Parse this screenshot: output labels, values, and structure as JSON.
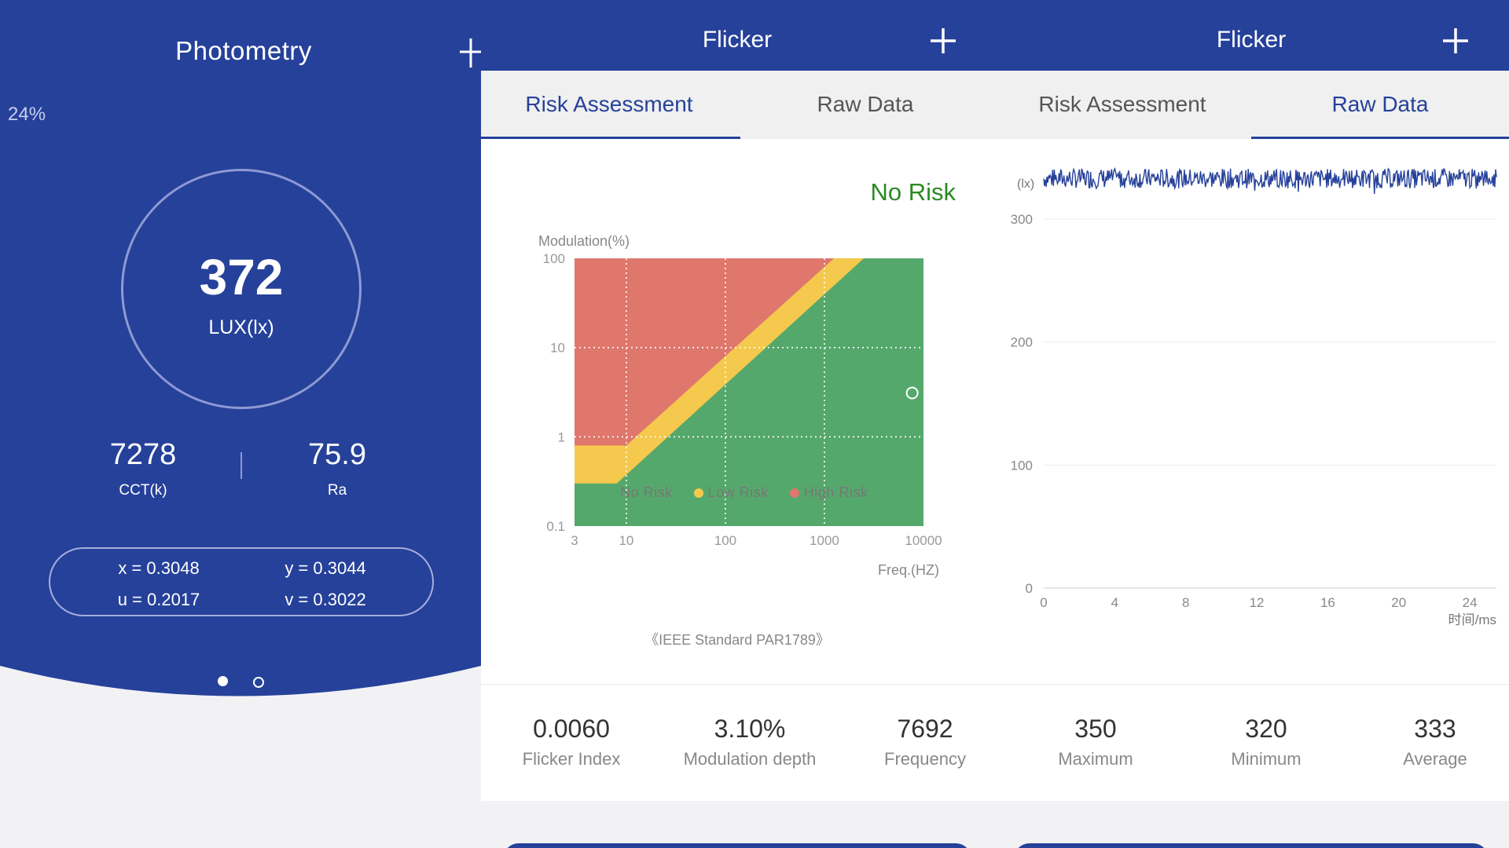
{
  "photometry": {
    "title": "Photometry",
    "battery": "24%",
    "lux_value": "372",
    "lux_unit": "LUX(lx)",
    "cct_value": "7278",
    "cct_label": "CCT(k)",
    "ra_value": "75.9",
    "ra_label": "Ra",
    "x": "x = 0.3048",
    "y": "y = 0.3044",
    "u": "u = 0.2017",
    "v": "v = 0.3022",
    "page_count": 2,
    "active_page": 1,
    "colors": {
      "primary": "#26419a",
      "ring": "#8e9ad3"
    }
  },
  "flicker_risk": {
    "title": "Flicker",
    "tabs": [
      {
        "label": "Risk Assessment"
      },
      {
        "label": "Raw Data"
      }
    ],
    "active_tab": 0,
    "risk_level": "No Risk",
    "legend": [
      {
        "label": "No Risk"
      },
      {
        "label": "Low Risk"
      },
      {
        "label": "High Risk"
      }
    ],
    "standard": "《IEEE Standard PAR1789》",
    "stats": [
      {
        "value": "0.0060",
        "label": "Flicker Index"
      },
      {
        "value": "3.10%",
        "label": "Modulation depth"
      },
      {
        "value": "7692",
        "label": "Frequency"
      }
    ]
  },
  "flicker_raw": {
    "title": "Flicker",
    "tabs": [
      {
        "label": "Risk Assessment"
      },
      {
        "label": "Raw Data"
      }
    ],
    "active_tab": 1,
    "stats": [
      {
        "value": "350",
        "label": "Maximum"
      },
      {
        "value": "320",
        "label": "Minimum"
      },
      {
        "value": "333",
        "label": "Average"
      }
    ]
  },
  "chart_data": [
    {
      "type": "area",
      "ylabel": "Modulation(%)",
      "xlabel": "Freq.(HZ)",
      "x_scale": "log",
      "y_scale": "log",
      "xlim": [
        3,
        10000
      ],
      "ylim": [
        0.1,
        100
      ],
      "x_ticks": [
        "3",
        "10",
        "100",
        "1000",
        "10000"
      ],
      "y_ticks": [
        "0.1",
        "1",
        "10",
        "100"
      ],
      "grid": true,
      "legend_position": "bottom",
      "regions": [
        {
          "name": "No Risk",
          "color": "#55a86b"
        },
        {
          "name": "Low Risk",
          "color": "#f5c94d"
        },
        {
          "name": "High Risk",
          "color": "#df776c"
        }
      ],
      "no_risk_boundary": {
        "x": [
          3,
          8,
          2500
        ],
        "y": [
          0.3,
          0.3,
          100
        ]
      },
      "low_risk_boundary": {
        "x": [
          3,
          10,
          1250
        ],
        "y": [
          0.8,
          0.8,
          100
        ]
      },
      "point": {
        "x": 7692,
        "y": 3.1
      }
    },
    {
      "type": "line",
      "ylabel": "(lx)",
      "xlabel": "时间/ms",
      "xlim": [
        0,
        25.5
      ],
      "ylim": [
        0,
        330
      ],
      "x_ticks": [
        0,
        4,
        8,
        12,
        16,
        20,
        24
      ],
      "y_ticks": [
        0,
        100,
        200,
        300
      ],
      "grid": true,
      "series": [
        {
          "color": "#26419a",
          "mean": 333,
          "min": 320,
          "max": 350
        }
      ]
    }
  ]
}
